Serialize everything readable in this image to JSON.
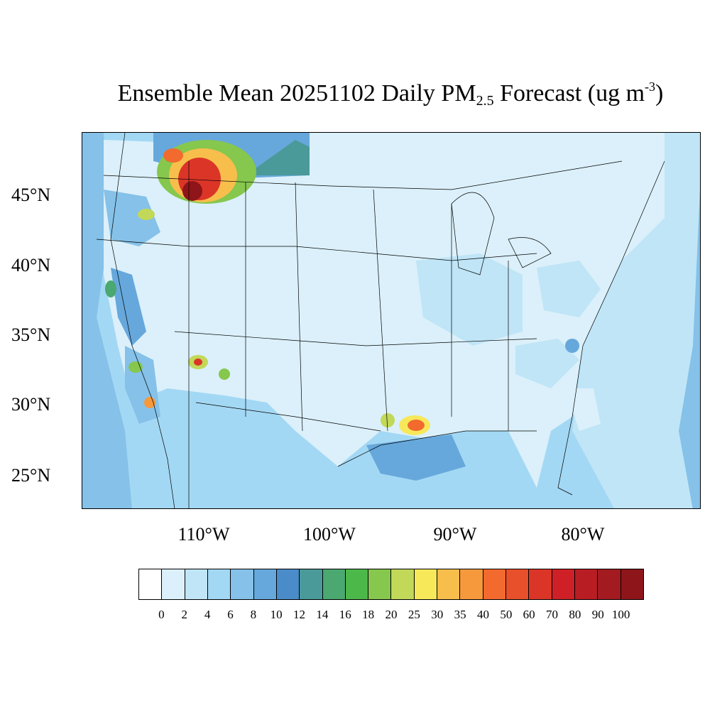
{
  "title": {
    "prefix": "Ensemble Mean 20251102 Daily PM",
    "subscript": "2.5",
    "middle": " Forecast (ug m",
    "superscript": "-3",
    "suffix": ")"
  },
  "lat_labels": [
    "45°N",
    "40°N",
    "35°N",
    "30°N",
    "25°N"
  ],
  "lon_labels": [
    "110°W",
    "100°W",
    "90°W",
    "80°W"
  ],
  "legend": {
    "ticks": [
      "0",
      "2",
      "4",
      "6",
      "8",
      "10",
      "12",
      "14",
      "16",
      "18",
      "20",
      "25",
      "30",
      "35",
      "40",
      "50",
      "60",
      "70",
      "80",
      "90",
      "100"
    ],
    "colors": [
      "#ffffff",
      "#dbf0fa",
      "#bfe5f7",
      "#a3d8f4",
      "#85c1e8",
      "#66a8dc",
      "#4a8cca",
      "#4a9a9a",
      "#4aa870",
      "#4db84a",
      "#86c74d",
      "#c2d858",
      "#f7e85a",
      "#f8be4c",
      "#f6993d",
      "#f26a2e",
      "#e8502b",
      "#db3528",
      "#cf2027",
      "#b81d24",
      "#a31b21",
      "#8e1519"
    ]
  },
  "regions": [
    {
      "type": "plume-high",
      "color": "#a31b21",
      "value": 100
    },
    {
      "type": "plume-mid",
      "color": "#f6993d",
      "value": 40
    },
    {
      "type": "plume-low",
      "color": "#86c74d",
      "value": 20
    },
    {
      "type": "background",
      "color": "#bfe5f7",
      "value": 4
    },
    {
      "type": "ocean",
      "color": "#85c1e8",
      "value": 8
    }
  ]
}
